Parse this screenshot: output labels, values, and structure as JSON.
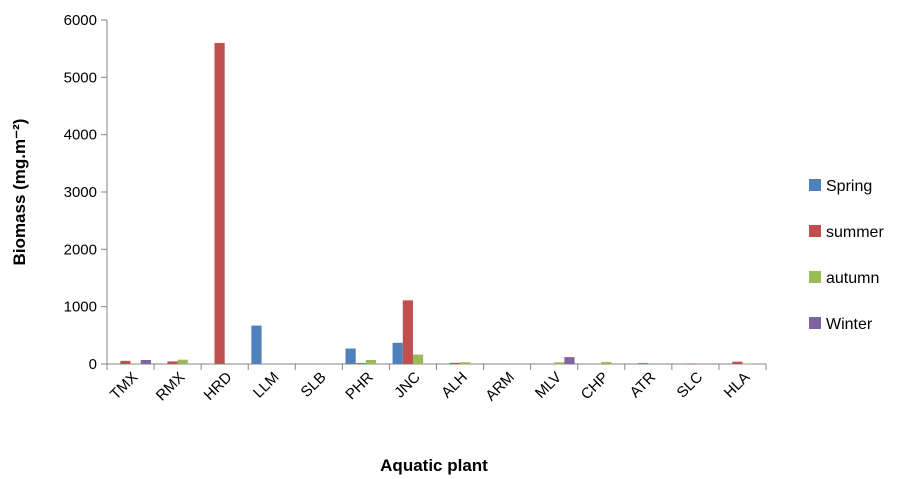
{
  "chart_data": {
    "type": "bar",
    "title": "",
    "xlabel": "Aquatic plant",
    "ylabel": "Biomass (mg.m⁻²)",
    "ylim": [
      0,
      6000
    ],
    "yticks": [
      "0",
      "1000",
      "2000",
      "3000",
      "4000",
      "5000",
      "6000"
    ],
    "grid": false,
    "legend_position": "right",
    "categories": [
      "TMX",
      "RMX",
      "HRD",
      "LLM",
      "SLB",
      "PHR",
      "JNC",
      "ALH",
      "ARM",
      "MLV",
      "CHP",
      "ATR",
      "SLC",
      "HLA"
    ],
    "series": [
      {
        "name": "Spring",
        "color": "#4f81bd",
        "values": [
          0,
          0,
          0,
          670,
          0,
          270,
          370,
          0,
          0,
          0,
          0,
          0,
          0,
          0
        ]
      },
      {
        "name": "summer",
        "color": "#c0504d",
        "values": [
          55,
          45,
          5600,
          0,
          0,
          15,
          1110,
          20,
          0,
          0,
          0,
          15,
          5,
          40
        ]
      },
      {
        "name": "autumn",
        "color": "#9bbb59",
        "values": [
          10,
          75,
          0,
          0,
          0,
          70,
          165,
          30,
          0,
          30,
          35,
          0,
          0,
          5
        ]
      },
      {
        "name": "Winter",
        "color": "#8064a2",
        "values": [
          70,
          0,
          0,
          0,
          0,
          0,
          0,
          0,
          0,
          120,
          0,
          0,
          0,
          0
        ]
      }
    ]
  }
}
